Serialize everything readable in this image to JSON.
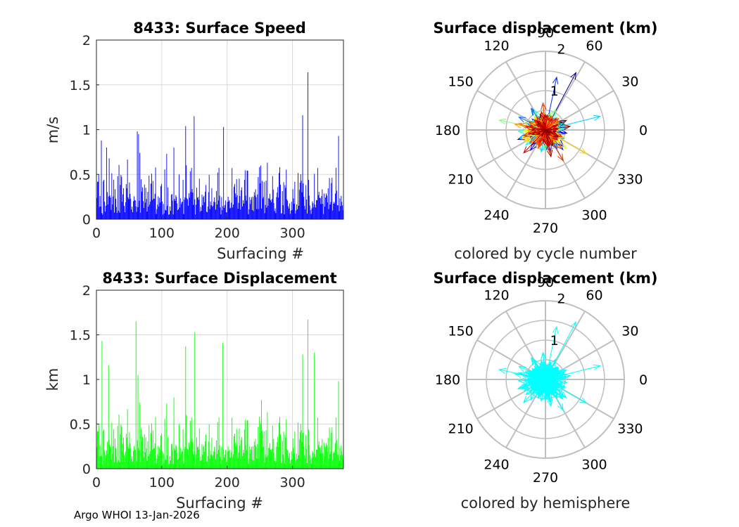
{
  "footer": {
    "credit": "Argo WHOI 13-Jan-2026"
  },
  "colors": {
    "speed_bars": "#0000ff",
    "displacement_bars": "#00ff00",
    "hemisphere_arrows": "#00ffff",
    "grid": "#d9d9d9",
    "polar_grid": "#bfbfbf",
    "axis_text": "#262626"
  },
  "chart_data": [
    {
      "type": "bar",
      "title": "8433: Surface Speed",
      "xlabel": "Surfacing #",
      "ylabel": "m/s",
      "xlim": [
        0,
        378
      ],
      "ylim": [
        0,
        2
      ],
      "xticks": [
        "0",
        "100",
        "200",
        "300"
      ],
      "yticks": [
        "0",
        "0.5",
        "1",
        "1.5",
        "2"
      ],
      "grid": true,
      "n_bars": 378,
      "peaks": [
        {
          "x": 7,
          "value": 0.88
        },
        {
          "x": 15,
          "value": 0.8
        },
        {
          "x": 19,
          "value": 0.68
        },
        {
          "x": 62,
          "value": 0.98
        },
        {
          "x": 64,
          "value": 0.95
        },
        {
          "x": 136,
          "value": 1.04
        },
        {
          "x": 149,
          "value": 1.15
        },
        {
          "x": 194,
          "value": 1.03
        },
        {
          "x": 251,
          "value": 0.6
        },
        {
          "x": 315,
          "value": 1.16
        },
        {
          "x": 323,
          "value": 1.64
        },
        {
          "x": 370,
          "value": 0.93
        }
      ]
    },
    {
      "type": "bar",
      "title": "8433: Surface Displacement",
      "xlabel": "Surfacing #",
      "ylabel": "km",
      "xlim": [
        0,
        378
      ],
      "ylim": [
        0,
        2
      ],
      "xticks": [
        "0",
        "100",
        "200",
        "300"
      ],
      "yticks": [
        "0",
        "0.5",
        "1",
        "1.5",
        "2"
      ],
      "grid": true,
      "n_bars": 378,
      "peaks": [
        {
          "x": 8,
          "value": 1.43
        },
        {
          "x": 18,
          "value": 1.16
        },
        {
          "x": 60,
          "value": 1.65
        },
        {
          "x": 63,
          "value": 1.05
        },
        {
          "x": 136,
          "value": 1.37
        },
        {
          "x": 150,
          "value": 1.53
        },
        {
          "x": 193,
          "value": 1.41
        },
        {
          "x": 252,
          "value": 0.77
        },
        {
          "x": 315,
          "value": 1.28
        },
        {
          "x": 323,
          "value": 1.67
        },
        {
          "x": 333,
          "value": 1.3
        },
        {
          "x": 370,
          "value": 0.98
        }
      ]
    },
    {
      "type": "polar",
      "title": "Surface displacement (km)",
      "caption": "colored by cycle number",
      "rmax": 2,
      "radial_ticks": [
        "1",
        "2"
      ],
      "angle_ticks": [
        "0",
        "30",
        "60",
        "90",
        "120",
        "150",
        "180",
        "210",
        "240",
        "270",
        "300",
        "330"
      ],
      "color_mode": "cycle",
      "n_arrows": 378,
      "notable_arrows": [
        {
          "angle_deg": 62,
          "r": 1.65
        },
        {
          "angle_deg": 78,
          "r": 1.37
        },
        {
          "angle_deg": 14,
          "r": 1.43
        },
        {
          "angle_deg": 168,
          "r": 1.2
        },
        {
          "angle_deg": 330,
          "r": 1.2
        },
        {
          "angle_deg": 300,
          "r": 0.9
        }
      ]
    },
    {
      "type": "polar",
      "title": "Surface displacement (km)",
      "caption": "colored by hemisphere",
      "rmax": 2,
      "radial_ticks": [
        "1",
        "2"
      ],
      "angle_ticks": [
        "0",
        "30",
        "60",
        "90",
        "120",
        "150",
        "180",
        "210",
        "240",
        "270",
        "300",
        "330"
      ],
      "color_mode": "hemisphere",
      "n_arrows": 378,
      "notable_arrows": [
        {
          "angle_deg": 62,
          "r": 1.65
        },
        {
          "angle_deg": 78,
          "r": 1.37
        },
        {
          "angle_deg": 14,
          "r": 1.43
        },
        {
          "angle_deg": 168,
          "r": 1.2
        },
        {
          "angle_deg": 330,
          "r": 1.2
        },
        {
          "angle_deg": 300,
          "r": 0.9
        }
      ]
    }
  ]
}
